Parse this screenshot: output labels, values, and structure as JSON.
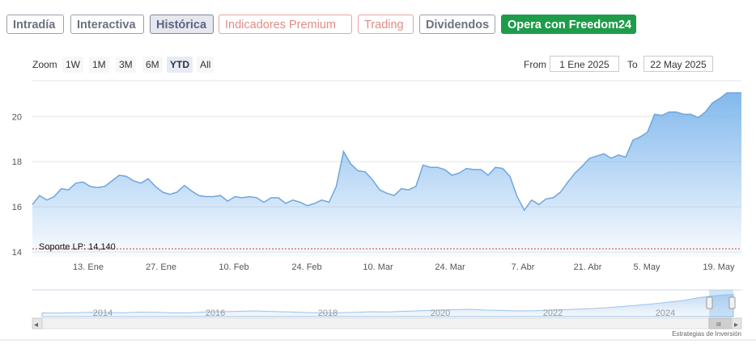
{
  "tabs": [
    {
      "label": "Intradía",
      "kind": "normal"
    },
    {
      "label": "Interactiva",
      "kind": "normal"
    },
    {
      "label": "Histórica",
      "kind": "active"
    },
    {
      "label": "Indicadores Premium",
      "kind": "premium"
    },
    {
      "label": "Trading",
      "kind": "trading"
    },
    {
      "label": "Dividendos",
      "kind": "normal"
    },
    {
      "label": "Opera con Freedom24",
      "kind": "cta"
    }
  ],
  "range_selector": {
    "zoom_label": "Zoom",
    "buttons": [
      "1W",
      "1M",
      "3M",
      "6M",
      "YTD",
      "All"
    ],
    "active": "YTD",
    "from_label": "From",
    "from_value": "1 Ene 2025",
    "to_label": "To",
    "to_value": "22 May 2025"
  },
  "chart_data": {
    "type": "area",
    "x_ticks": [
      "13. Ene",
      "27. Ene",
      "10. Feb",
      "24. Feb",
      "10. Mar",
      "24. Mar",
      "7. Abr",
      "21. Abr",
      "5. May",
      "19. May"
    ],
    "y_ticks": [
      "14",
      "16",
      "18",
      "20"
    ],
    "ylim": [
      14,
      21.8
    ],
    "support_line": {
      "label": "Soporte LP: 14,140",
      "value": 14.14,
      "color": "#c0392b"
    },
    "series_color": "#7cb5ec",
    "values": [
      16.1,
      16.5,
      16.3,
      16.45,
      16.8,
      16.75,
      17.05,
      17.1,
      16.9,
      16.85,
      16.9,
      17.15,
      17.4,
      17.35,
      17.15,
      17.05,
      17.25,
      16.9,
      16.65,
      16.55,
      16.65,
      16.95,
      16.7,
      16.5,
      16.45,
      16.45,
      16.5,
      16.25,
      16.45,
      16.4,
      16.45,
      16.4,
      16.2,
      16.4,
      16.4,
      16.15,
      16.3,
      16.2,
      16.05,
      16.15,
      16.3,
      16.2,
      16.9,
      18.45,
      17.9,
      17.6,
      17.55,
      17.2,
      16.75,
      16.6,
      16.5,
      16.8,
      16.75,
      16.9,
      17.85,
      17.75,
      17.75,
      17.65,
      17.4,
      17.5,
      17.7,
      17.65,
      17.65,
      17.4,
      17.75,
      17.7,
      17.35,
      16.45,
      15.85,
      16.3,
      16.1,
      16.35,
      16.4,
      16.65,
      17.1,
      17.5,
      17.8,
      18.15,
      18.25,
      18.35,
      18.15,
      18.3,
      18.2,
      18.95,
      19.1,
      19.3,
      20.1,
      20.05,
      20.2,
      20.2,
      20.1,
      20.1,
      19.95,
      20.2,
      20.6,
      20.8,
      21.05,
      21.05,
      21.05
    ],
    "navigator": {
      "year_labels": [
        "2014",
        "2016",
        "2018",
        "2020",
        "2022",
        "2024"
      ],
      "values": [
        11.8,
        11.7,
        11.9,
        12.1,
        12.0,
        11.9,
        12.2,
        12.1,
        11.8,
        11.9,
        12.3,
        12.4,
        12.6,
        12.8,
        12.5,
        12.3,
        12.0,
        11.8,
        11.9,
        12.1,
        12.4,
        12.3,
        12.6,
        12.9,
        13.2,
        13.4,
        13.6,
        13.2,
        13.0,
        12.8,
        12.9,
        13.3,
        13.5,
        13.8,
        14.2,
        14.8,
        15.5,
        16.2,
        17.1,
        18.0,
        19.5,
        20.4,
        21.0
      ]
    }
  },
  "watermark": "Estrategias de Inversión",
  "scroll_thumb_glyph": "III",
  "scroll_left_glyph": "◂",
  "scroll_right_glyph": "▸"
}
